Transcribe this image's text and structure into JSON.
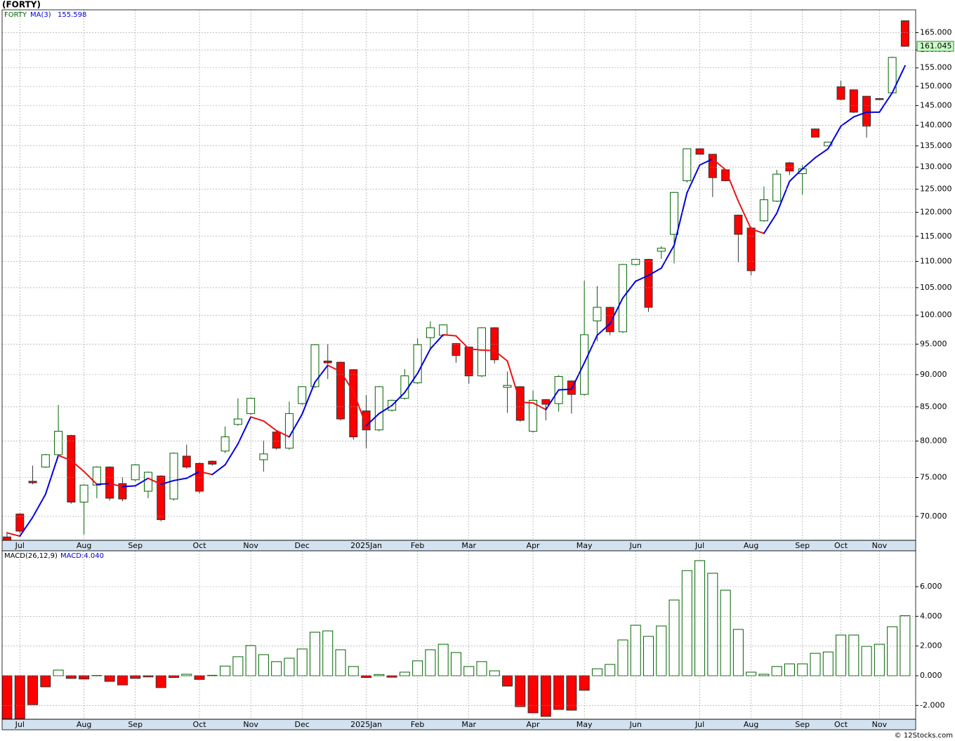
{
  "page_title": "(FORTY)",
  "credit": "© 12Stocks.com",
  "chart_data": [
    {
      "type": "candlestick",
      "title": "FORTY",
      "log_scale": true,
      "grid": true,
      "up_color": "#006400",
      "down_color": "#ff0000",
      "categories": [
        null,
        "Jul",
        null,
        null,
        null,
        null,
        "Aug",
        null,
        null,
        null,
        "Sep",
        null,
        null,
        null,
        null,
        "Oct",
        null,
        null,
        null,
        "Nov",
        null,
        null,
        null,
        "Dec",
        null,
        null,
        null,
        null,
        "2025Jan",
        null,
        null,
        null,
        "Feb",
        null,
        null,
        null,
        "Mar",
        null,
        null,
        null,
        null,
        "Apr",
        null,
        null,
        null,
        "May",
        null,
        null,
        null,
        "Jun",
        null,
        null,
        null,
        null,
        "Jul",
        null,
        null,
        null,
        "Aug",
        null,
        null,
        null,
        "Sep",
        null,
        null,
        "Oct",
        null,
        null,
        "Nov",
        null,
        null
      ],
      "open": [
        67.5,
        70.3,
        74.5,
        76.4,
        78.1,
        80.8,
        71.8,
        74.0,
        76.4,
        74.2,
        74.7,
        73.2,
        75.2,
        72.2,
        77.9,
        76.9,
        77.2,
        78.6,
        82.4,
        84.0,
        77.4,
        81.3,
        79.0,
        85.5,
        88.1,
        92.2,
        92.0,
        90.8,
        84.4,
        81.6,
        84.5,
        86.3,
        88.7,
        96.1,
        96.5,
        95.1,
        94.5,
        89.8,
        97.8,
        88.0,
        88.1,
        81.4,
        86.1,
        85.5,
        89.0,
        86.9,
        99.0,
        101.4,
        97.1,
        109.4,
        110.4,
        112.0,
        115.4,
        126.9,
        134.3,
        133.0,
        129.4,
        119.4,
        116.7,
        118.2,
        122.4,
        131.0,
        128.5,
        139.1,
        135.0,
        149.9,
        149.1,
        147.4,
        146.8,
        148.3,
        168.5
      ],
      "high": [
        68.0,
        70.4,
        76.6,
        78.2,
        85.3,
        80.9,
        74.1,
        76.5,
        76.5,
        75.0,
        76.8,
        75.8,
        75.3,
        78.4,
        79.5,
        77.0,
        77.3,
        82.1,
        86.3,
        86.4,
        80.1,
        81.4,
        85.8,
        88.2,
        95.0,
        95.0,
        92.1,
        90.9,
        86.8,
        88.2,
        86.1,
        90.9,
        96.0,
        98.9,
        98.4,
        95.2,
        94.6,
        97.9,
        97.9,
        90.5,
        88.2,
        87.5,
        86.2,
        89.9,
        89.1,
        106.3,
        105.3,
        101.5,
        109.5,
        110.5,
        110.5,
        113.0,
        124.4,
        134.4,
        134.4,
        133.1,
        129.5,
        119.5,
        117.0,
        125.6,
        129.4,
        131.2,
        130.5,
        139.2,
        136.0,
        151.5,
        149.2,
        147.5,
        146.9,
        158.1,
        168.6
      ],
      "low": [
        66.0,
        67.9,
        74.1,
        76.3,
        77.8,
        71.6,
        67.8,
        72.3,
        72.0,
        71.9,
        74.5,
        72.3,
        69.4,
        72.0,
        76.2,
        72.9,
        76.6,
        78.3,
        82.2,
        83.8,
        75.8,
        78.8,
        78.8,
        85.3,
        87.9,
        89.3,
        83.0,
        80.2,
        79.0,
        81.4,
        84.3,
        86.1,
        88.5,
        94.0,
        96.3,
        91.9,
        88.6,
        89.6,
        91.8,
        84.1,
        82.8,
        81.2,
        83.0,
        84.3,
        84.0,
        86.7,
        95.5,
        96.5,
        96.9,
        109.2,
        100.6,
        110.5,
        109.6,
        126.5,
        132.9,
        123.3,
        126.8,
        109.8,
        107.3,
        118.0,
        122.2,
        128.2,
        123.8,
        137.0,
        134.9,
        146.4,
        143.1,
        137.0,
        146.6,
        148.1,
        160.9
      ],
      "close": [
        67.0,
        68.2,
        74.3,
        78.1,
        81.4,
        71.8,
        74.0,
        76.4,
        72.3,
        72.2,
        76.7,
        75.7,
        69.6,
        78.3,
        76.4,
        73.2,
        76.8,
        80.6,
        83.2,
        86.3,
        78.2,
        79.0,
        84.0,
        88.1,
        94.9,
        91.9,
        83.2,
        80.6,
        81.6,
        88.1,
        86.0,
        89.8,
        94.9,
        97.8,
        98.3,
        93.1,
        89.8,
        97.8,
        92.4,
        88.3,
        83.0,
        86.0,
        85.4,
        89.7,
        86.9,
        96.6,
        101.4,
        97.1,
        109.4,
        110.4,
        101.4,
        112.6,
        124.3,
        134.3,
        133.0,
        127.6,
        126.9,
        115.4,
        108.2,
        122.7,
        128.4,
        129.1,
        129.6,
        137.1,
        135.9,
        146.6,
        143.3,
        139.8,
        146.7,
        157.9,
        161.045
      ],
      "ma": {
        "name": "MA(3)",
        "color": "#0000dd",
        "down_color": "#ee1111",
        "values": [
          68.0,
          67.6,
          69.9,
          72.8,
          78.0,
          77.3,
          75.8,
          74.1,
          74.2,
          73.8,
          73.9,
          74.9,
          74.1,
          74.6,
          74.9,
          75.8,
          75.4,
          76.7,
          79.6,
          83.5,
          82.9,
          81.5,
          80.6,
          83.9,
          88.8,
          91.5,
          90.5,
          87.3,
          82.2,
          84.0,
          85.2,
          87.2,
          90.2,
          94.2,
          96.6,
          96.4,
          94.2,
          94.0,
          93.9,
          92.2,
          85.7,
          85.6,
          84.6,
          87.6,
          87.7,
          91.9,
          96.5,
          98.5,
          103.1,
          106.2,
          107.3,
          108.7,
          113.2,
          124.2,
          130.5,
          131.9,
          129.4,
          122.4,
          116.5,
          115.6,
          119.8,
          126.8,
          129.6,
          132.2,
          134.3,
          139.8,
          142.1,
          143.3,
          143.3,
          148.3,
          155.598
        ]
      },
      "ylim": [
        67.1,
        171.8
      ],
      "yticks": [
        {
          "value": 70,
          "label": "70.000"
        },
        {
          "value": 75,
          "label": "75.000"
        },
        {
          "value": 80,
          "label": "80.000"
        },
        {
          "value": 85,
          "label": "85.000"
        },
        {
          "value": 90,
          "label": "90.000"
        },
        {
          "value": 95,
          "label": "95.000"
        },
        {
          "value": 100,
          "label": "100.000"
        },
        {
          "value": 105,
          "label": "105.000"
        },
        {
          "value": 110,
          "label": "110.000"
        },
        {
          "value": 115,
          "label": "115.000"
        },
        {
          "value": 120,
          "label": "120.000"
        },
        {
          "value": 125,
          "label": "125.000"
        },
        {
          "value": 130,
          "label": "130.000"
        },
        {
          "value": 135,
          "label": "135.000"
        },
        {
          "value": 140,
          "label": "140.000"
        },
        {
          "value": 145,
          "label": "145.000"
        },
        {
          "value": 150,
          "label": "150.000"
        },
        {
          "value": 155,
          "label": "155.000"
        },
        {
          "value": 160,
          "label": "160.000"
        },
        {
          "value": 165,
          "label": "165.000"
        }
      ]
    },
    {
      "type": "bar",
      "title": "MACD(26,12,9)",
      "grid": true,
      "categories": [
        null,
        "Jul",
        null,
        null,
        null,
        null,
        "Aug",
        null,
        null,
        null,
        "Sep",
        null,
        null,
        null,
        null,
        "Oct",
        null,
        null,
        null,
        "Nov",
        null,
        null,
        null,
        "Dec",
        null,
        null,
        null,
        null,
        "2025Jan",
        null,
        null,
        null,
        "Feb",
        null,
        null,
        null,
        "Mar",
        null,
        null,
        null,
        null,
        "Apr",
        null,
        null,
        null,
        "May",
        null,
        null,
        null,
        "Jun",
        null,
        null,
        null,
        null,
        "Jul",
        null,
        null,
        null,
        "Aug",
        null,
        null,
        null,
        "Sep",
        null,
        null,
        "Oct",
        null,
        null,
        "Nov",
        null,
        null
      ],
      "series": [
        {
          "name": "MACD:4.040",
          "color": "#006400",
          "down_color": "#ff0000",
          "values": [
            -2.9,
            -2.9,
            -1.95,
            -0.75,
            0.38,
            -0.18,
            -0.22,
            0.02,
            -0.38,
            -0.62,
            -0.18,
            -0.08,
            -0.8,
            -0.12,
            0.1,
            -0.25,
            0.03,
            0.65,
            1.28,
            2.03,
            1.42,
            0.95,
            1.18,
            1.8,
            2.93,
            3.02,
            1.75,
            0.62,
            -0.12,
            0.08,
            -0.1,
            0.24,
            1.0,
            1.75,
            2.12,
            1.56,
            0.62,
            0.95,
            0.33,
            -0.7,
            -2.08,
            -2.5,
            -2.74,
            -2.27,
            -2.32,
            -0.98,
            0.47,
            0.76,
            2.41,
            3.4,
            2.65,
            3.35,
            5.1,
            7.08,
            7.75,
            6.9,
            5.76,
            3.12,
            0.24,
            0.1,
            0.62,
            0.8,
            0.8,
            1.51,
            1.6,
            2.74,
            2.74,
            1.98,
            2.12,
            3.3,
            4.04
          ]
        }
      ],
      "ylim": [
        -2.93,
        8.41
      ],
      "yticks": [
        {
          "value": -2,
          "label": "-2.000"
        },
        {
          "value": 0,
          "label": "0.000"
        },
        {
          "value": 2,
          "label": "2.000"
        },
        {
          "value": 4,
          "label": "4.000"
        },
        {
          "value": 6,
          "label": "6.000"
        }
      ]
    }
  ]
}
